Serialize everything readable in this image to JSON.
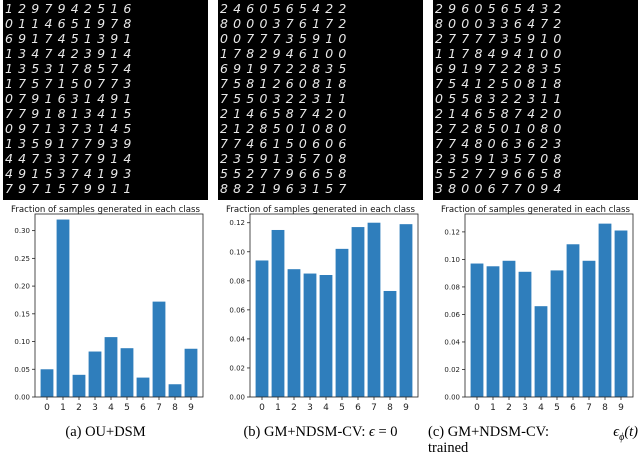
{
  "chart_data": [
    {
      "type": "bar",
      "title": "Fraction of samples generated in each class",
      "caption": "(a) OU+DSM",
      "categories": [
        "0",
        "1",
        "2",
        "3",
        "4",
        "5",
        "6",
        "7",
        "8",
        "9"
      ],
      "values": [
        0.05,
        0.32,
        0.04,
        0.082,
        0.108,
        0.088,
        0.035,
        0.172,
        0.023,
        0.087
      ],
      "ylim": [
        0,
        0.33
      ],
      "yticks": [
        0.0,
        0.05,
        0.1,
        0.15,
        0.2,
        0.25,
        0.3
      ],
      "ytick_labels": [
        "0.00",
        "0.05",
        "0.10",
        "0.15",
        "0.20",
        "0.25",
        "0.30"
      ],
      "color": "#2f7ebc",
      "digit_grid": [
        "1297942516",
        "0114651978",
        "6917451391",
        "1347423914",
        "1353178574",
        "1757150773",
        "0791631491",
        "7791813415",
        "0971373145",
        "1359177939",
        "4473377914",
        "4915374193",
        "7971579911"
      ]
    },
    {
      "type": "bar",
      "title": "Fraction of samples generated in each class",
      "caption_parts": [
        "(b) GM+NDSM-CV: ",
        "ϵ",
        " = 0"
      ],
      "categories": [
        "0",
        "1",
        "2",
        "3",
        "4",
        "5",
        "6",
        "7",
        "8",
        "9"
      ],
      "values": [
        0.094,
        0.115,
        0.088,
        0.085,
        0.084,
        0.102,
        0.117,
        0.12,
        0.073,
        0.119
      ],
      "ylim": [
        0,
        0.126
      ],
      "yticks": [
        0.0,
        0.02,
        0.04,
        0.06,
        0.08,
        0.1,
        0.12
      ],
      "ytick_labels": [
        "0.00",
        "0.02",
        "0.04",
        "0.06",
        "0.08",
        "0.10",
        "0.12"
      ],
      "color": "#2f7ebc",
      "digit_grid": [
        "2460565422",
        "8000376172",
        "0077735910",
        "1782946100",
        "6919722835",
        "7581260818",
        "7550322311",
        "2146587420",
        "2128501080",
        "7746150606",
        "2359135708",
        "5527796658",
        "8821963157"
      ]
    },
    {
      "type": "bar",
      "title": "Fraction of samples generated in each class",
      "caption_parts": [
        "(c) GM+NDSM-CV: ",
        "ϵ",
        "ϕ",
        "(t)",
        "trained"
      ],
      "categories": [
        "0",
        "1",
        "2",
        "3",
        "4",
        "5",
        "6",
        "7",
        "8",
        "9"
      ],
      "values": [
        0.097,
        0.095,
        0.099,
        0.091,
        0.066,
        0.092,
        0.111,
        0.099,
        0.126,
        0.121
      ],
      "ylim": [
        0,
        0.133
      ],
      "yticks": [
        0.0,
        0.02,
        0.04,
        0.06,
        0.08,
        0.1,
        0.12
      ],
      "ytick_labels": [
        "0.00",
        "0.02",
        "0.04",
        "0.06",
        "0.08",
        "0.10",
        "0.12"
      ],
      "color": "#2f7ebc",
      "digit_grid": [
        "2960565432",
        "8000336472",
        "2777735910",
        "1178494100",
        "6919722835",
        "7541250818",
        "0558322311",
        "2146587420",
        "2728501080",
        "7748063623",
        "2359135708",
        "5527796658",
        "3800677094"
      ]
    }
  ]
}
